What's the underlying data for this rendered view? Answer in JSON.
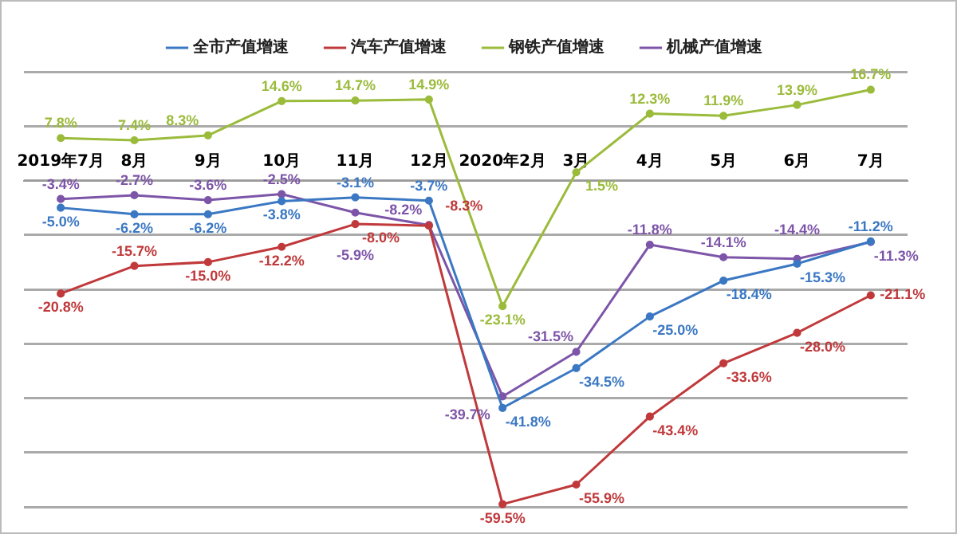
{
  "chart_data": {
    "type": "line",
    "categories": [
      "2019年7月",
      "8月",
      "9月",
      "10月",
      "11月",
      "12月",
      "2020年2月",
      "3月",
      "4月",
      "5月",
      "6月",
      "7月"
    ],
    "series": [
      {
        "name": "全市产值增速",
        "color": "#3b78c3",
        "values": [
          -5.0,
          -6.2,
          -6.2,
          -3.8,
          -3.1,
          -3.7,
          -41.8,
          -34.5,
          -25.0,
          -18.4,
          -15.3,
          -11.2
        ],
        "value_labels": [
          "-5.0%",
          "-6.2%",
          "-6.2%",
          "-3.8%",
          "-3.1%",
          "-3.7%",
          "-41.8%",
          "-34.5%",
          "-25.0%",
          "-18.4%",
          "-15.3%",
          "-11.2%"
        ]
      },
      {
        "name": "汽车产值增速",
        "color": "#c0393b",
        "values": [
          -20.8,
          -15.7,
          -15.0,
          -12.2,
          -8.0,
          -8.3,
          -59.5,
          -55.9,
          -43.4,
          -33.6,
          -28.0,
          -21.1
        ],
        "value_labels": [
          "-20.8%",
          "-15.7%",
          "-15.0%",
          "-12.2%",
          "-8.0%",
          "-8.3%",
          "-59.5%",
          "-55.9%",
          "-43.4%",
          "-33.6%",
          "-28.0%",
          "-21.1%"
        ]
      },
      {
        "name": "钢铁产值增速",
        "color": "#9bbb3b",
        "values": [
          7.8,
          7.4,
          8.3,
          14.6,
          14.7,
          14.9,
          -23.1,
          1.5,
          12.3,
          11.9,
          13.9,
          16.7
        ],
        "value_labels": [
          "7.8%",
          "7.4%",
          "8.3%",
          "14.6%",
          "14.7%",
          "14.9%",
          "-23.1%",
          "1.5%",
          "12.3%",
          "11.9%",
          "13.9%",
          "16.7%"
        ]
      },
      {
        "name": "机械产值增速",
        "color": "#7d55a8",
        "values": [
          -3.4,
          -2.7,
          -3.6,
          -2.5,
          -5.9,
          -8.2,
          -39.7,
          -31.5,
          -11.8,
          -14.1,
          -14.4,
          -11.3
        ],
        "value_labels": [
          "-3.4%",
          "-2.7%",
          "-3.6%",
          "-2.5%",
          "-5.9%",
          "-8.2%",
          "-39.7%",
          "-31.5%",
          "-11.8%",
          "-14.1%",
          "-14.4%",
          "-11.3%"
        ]
      }
    ],
    "tick_labels": "x",
    "grid": "y",
    "legend": "top",
    "marker": "circle",
    "line_style": "solid"
  }
}
